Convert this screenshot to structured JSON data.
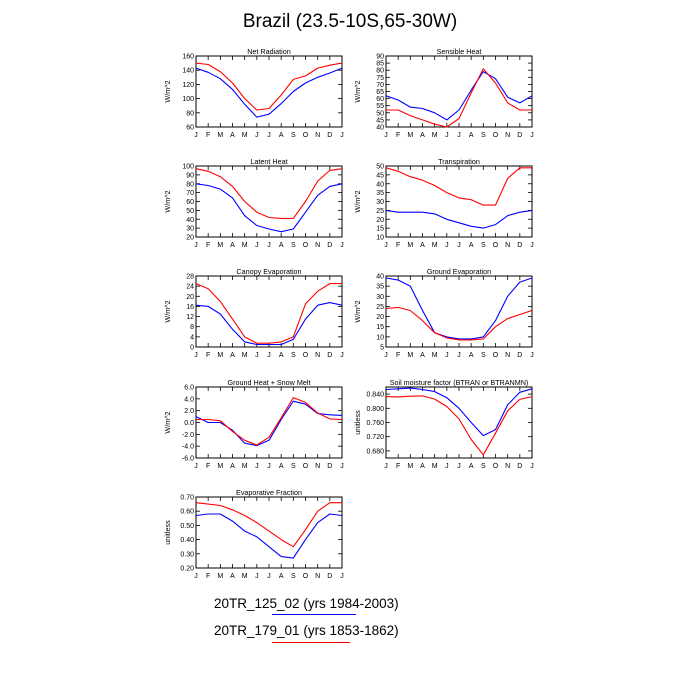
{
  "title": "Brazil (23.5-10S,65-30W)",
  "months": [
    "J",
    "F",
    "M",
    "A",
    "M",
    "J",
    "J",
    "A",
    "S",
    "O",
    "N",
    "D",
    "J"
  ],
  "colors": {
    "series1": "#0000ff",
    "series2": "#ff0000"
  },
  "legend": {
    "entries": [
      {
        "label": "20TR_125_02 (yrs 1984-2003)",
        "color": "#0000ff"
      },
      {
        "label": "20TR_179_01 (yrs 1853-1862)",
        "color": "#ff0000"
      }
    ]
  },
  "chart_data": [
    {
      "type": "line",
      "title": "Net Radiation",
      "ylabel": "W/m^2",
      "ylim": [
        60,
        160
      ],
      "yticks": [
        "60",
        "80",
        "100",
        "120",
        "140",
        "160"
      ],
      "ytick_values": [
        60,
        80,
        100,
        120,
        140,
        160
      ],
      "series": [
        {
          "name": "20TR_125_02",
          "values": [
            143,
            137,
            128,
            113,
            92,
            74,
            78,
            93,
            110,
            122,
            130,
            136,
            143
          ]
        },
        {
          "name": "20TR_179_01",
          "values": [
            150,
            148,
            138,
            122,
            100,
            84,
            86,
            105,
            127,
            132,
            143,
            147,
            150
          ]
        }
      ]
    },
    {
      "type": "line",
      "title": "Sensible Heat",
      "ylabel": "W/m^2",
      "ylim": [
        40,
        90
      ],
      "yticks": [
        "40",
        "45",
        "50",
        "55",
        "60",
        "65",
        "70",
        "75",
        "80",
        "85",
        "90"
      ],
      "ytick_values": [
        40,
        45,
        50,
        55,
        60,
        65,
        70,
        75,
        80,
        85,
        90
      ],
      "series": [
        {
          "name": "20TR_125_02",
          "values": [
            62,
            59,
            54,
            53,
            50,
            45,
            52,
            66,
            79,
            74,
            61,
            57,
            62
          ]
        },
        {
          "name": "20TR_179_01",
          "values": [
            52,
            52,
            48,
            45,
            42,
            40,
            46,
            64,
            81,
            71,
            57,
            52,
            52
          ]
        }
      ]
    },
    {
      "type": "line",
      "title": "Latent Heat",
      "ylabel": "W/m^2",
      "ylim": [
        20,
        100
      ],
      "yticks": [
        "20",
        "30",
        "40",
        "50",
        "60",
        "70",
        "80",
        "90",
        "100"
      ],
      "ytick_values": [
        20,
        30,
        40,
        50,
        60,
        70,
        80,
        90,
        100
      ],
      "series": [
        {
          "name": "20TR_125_02",
          "values": [
            80,
            78,
            74,
            64,
            44,
            33,
            29,
            26,
            29,
            48,
            67,
            77,
            80
          ]
        },
        {
          "name": "20TR_179_01",
          "values": [
            97,
            94,
            88,
            77,
            60,
            48,
            42,
            41,
            41,
            60,
            83,
            95,
            97
          ]
        }
      ]
    },
    {
      "type": "line",
      "title": "Transpiration",
      "ylabel": "W/m^2",
      "ylim": [
        10,
        50
      ],
      "yticks": [
        "10",
        "15",
        "20",
        "25",
        "30",
        "35",
        "40",
        "45",
        "50"
      ],
      "ytick_values": [
        10,
        15,
        20,
        25,
        30,
        35,
        40,
        45,
        50
      ],
      "series": [
        {
          "name": "20TR_125_02",
          "values": [
            25,
            24,
            24,
            24,
            23,
            20,
            18,
            16,
            15,
            17,
            22,
            24,
            25
          ]
        },
        {
          "name": "20TR_179_01",
          "values": [
            49,
            47,
            44,
            42,
            39,
            35,
            32,
            31,
            28,
            28,
            43,
            49,
            49
          ]
        }
      ]
    },
    {
      "type": "line",
      "title": "Canopy Evaporation",
      "ylabel": "W/m^2",
      "ylim": [
        0,
        28
      ],
      "yticks": [
        "0",
        "4",
        "8",
        "12",
        "16",
        "20",
        "24",
        "28"
      ],
      "ytick_values": [
        0,
        4,
        8,
        12,
        16,
        20,
        24,
        28
      ],
      "series": [
        {
          "name": "20TR_125_02",
          "values": [
            16.5,
            16,
            13,
            7,
            2,
            1,
            1,
            1,
            3,
            11,
            16.5,
            17.5,
            16.5
          ]
        },
        {
          "name": "20TR_179_01",
          "values": [
            25,
            23,
            18,
            11,
            4,
            1.5,
            1.5,
            2,
            4,
            17,
            22,
            25,
            25
          ]
        }
      ]
    },
    {
      "type": "line",
      "title": "Ground Evaporation",
      "ylabel": "W/m^2",
      "ylim": [
        5,
        40
      ],
      "yticks": [
        "5",
        "10",
        "15",
        "20",
        "25",
        "30",
        "35",
        "40"
      ],
      "ytick_values": [
        5,
        10,
        15,
        20,
        25,
        30,
        35,
        40
      ],
      "series": [
        {
          "name": "20TR_125_02",
          "values": [
            39,
            38,
            35,
            23,
            12,
            10,
            9,
            9,
            10,
            18,
            30,
            37,
            39
          ]
        },
        {
          "name": "20TR_179_01",
          "values": [
            24,
            24.5,
            23,
            18,
            12,
            9.5,
            8.5,
            8.5,
            9,
            15,
            19,
            21,
            23
          ]
        }
      ]
    },
    {
      "type": "line",
      "title": "Ground Heat + Snow Melt",
      "ylabel": "W/m^2",
      "ylim": [
        -6,
        6
      ],
      "yticks": [
        "-6.0",
        "-4.0",
        "-2.0",
        "0.0",
        "2.0",
        "4.0",
        "6.0"
      ],
      "ytick_values": [
        -6,
        -4,
        -2,
        0,
        2,
        4,
        6
      ],
      "series": [
        {
          "name": "20TR_125_02",
          "values": [
            1.0,
            0.0,
            0.0,
            -1.3,
            -3.5,
            -3.9,
            -3.0,
            0.5,
            3.6,
            3.1,
            1.5,
            1.3,
            1.2
          ]
        },
        {
          "name": "20TR_179_01",
          "values": [
            0.5,
            0.5,
            0.3,
            -1.5,
            -3.0,
            -3.8,
            -2.5,
            0.8,
            4.2,
            3.4,
            1.6,
            0.6,
            0.5
          ]
        }
      ]
    },
    {
      "type": "line",
      "title": "Soil moisture factor (BTRAN or BTRANMN)",
      "ylabel": "unitless",
      "ylim": [
        0.66,
        0.86
      ],
      "yticks": [
        "0.680",
        "0.720",
        "0.760",
        "0.800",
        "0.840"
      ],
      "ytick_values": [
        0.68,
        0.72,
        0.76,
        0.8,
        0.84
      ],
      "series": [
        {
          "name": "20TR_125_02",
          "values": [
            0.853,
            0.855,
            0.857,
            0.853,
            0.847,
            0.83,
            0.8,
            0.76,
            0.723,
            0.74,
            0.81,
            0.845,
            0.855
          ]
        },
        {
          "name": "20TR_179_01",
          "values": [
            0.833,
            0.832,
            0.834,
            0.835,
            0.826,
            0.805,
            0.77,
            0.712,
            0.669,
            0.73,
            0.793,
            0.825,
            0.833
          ]
        }
      ]
    },
    {
      "type": "line",
      "title": "Evaporative Fraction",
      "ylabel": "unitless",
      "ylim": [
        0.2,
        0.7
      ],
      "yticks": [
        "0.20",
        "0.30",
        "0.40",
        "0.50",
        "0.60",
        "0.70"
      ],
      "ytick_values": [
        0.2,
        0.3,
        0.4,
        0.5,
        0.6,
        0.7
      ],
      "series": [
        {
          "name": "20TR_125_02",
          "values": [
            0.57,
            0.58,
            0.58,
            0.53,
            0.46,
            0.42,
            0.35,
            0.28,
            0.27,
            0.4,
            0.52,
            0.58,
            0.57
          ]
        },
        {
          "name": "20TR_179_01",
          "values": [
            0.66,
            0.65,
            0.64,
            0.61,
            0.57,
            0.52,
            0.46,
            0.4,
            0.35,
            0.47,
            0.6,
            0.66,
            0.66
          ]
        }
      ]
    }
  ]
}
